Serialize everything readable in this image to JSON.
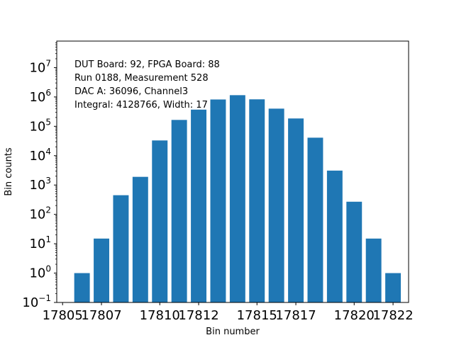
{
  "chart_data": {
    "type": "bar",
    "title": "",
    "xlabel": "Bin number",
    "ylabel": "Bin counts",
    "yscale": "log",
    "bar_color": "#1f77b4",
    "x": [
      17806,
      17807,
      17808,
      17809,
      17810,
      17811,
      17812,
      17813,
      17814,
      17815,
      17816,
      17817,
      17818,
      17819,
      17820,
      17821,
      17822
    ],
    "values": [
      1,
      15,
      450,
      1900,
      33000,
      165000,
      370000,
      820000,
      1150000,
      830000,
      400000,
      185000,
      41000,
      3100,
      270,
      15,
      1
    ],
    "xlim": [
      17804.7,
      17822.8
    ],
    "ylim": [
      0.1,
      80000000
    ],
    "xticks": [
      17805,
      17807,
      17810,
      17812,
      17815,
      17817,
      17820,
      17822
    ],
    "yticks": [
      {
        "value": 0.1,
        "base": "10",
        "exp": "−1"
      },
      {
        "value": 1,
        "base": "10",
        "exp": "0"
      },
      {
        "value": 10,
        "base": "10",
        "exp": "1"
      },
      {
        "value": 100,
        "base": "10",
        "exp": "2"
      },
      {
        "value": 1000,
        "base": "10",
        "exp": "3"
      },
      {
        "value": 10000,
        "base": "10",
        "exp": "4"
      },
      {
        "value": 100000,
        "base": "10",
        "exp": "5"
      },
      {
        "value": 1000000,
        "base": "10",
        "exp": "6"
      },
      {
        "value": 10000000,
        "base": "10",
        "exp": "7"
      }
    ],
    "annotation": [
      "DUT Board: 92, FPGA Board: 88",
      "Run 0188, Measurement 528",
      "DAC A: 36096, Channel3",
      "Integral: 4128766, Width: 17"
    ]
  }
}
